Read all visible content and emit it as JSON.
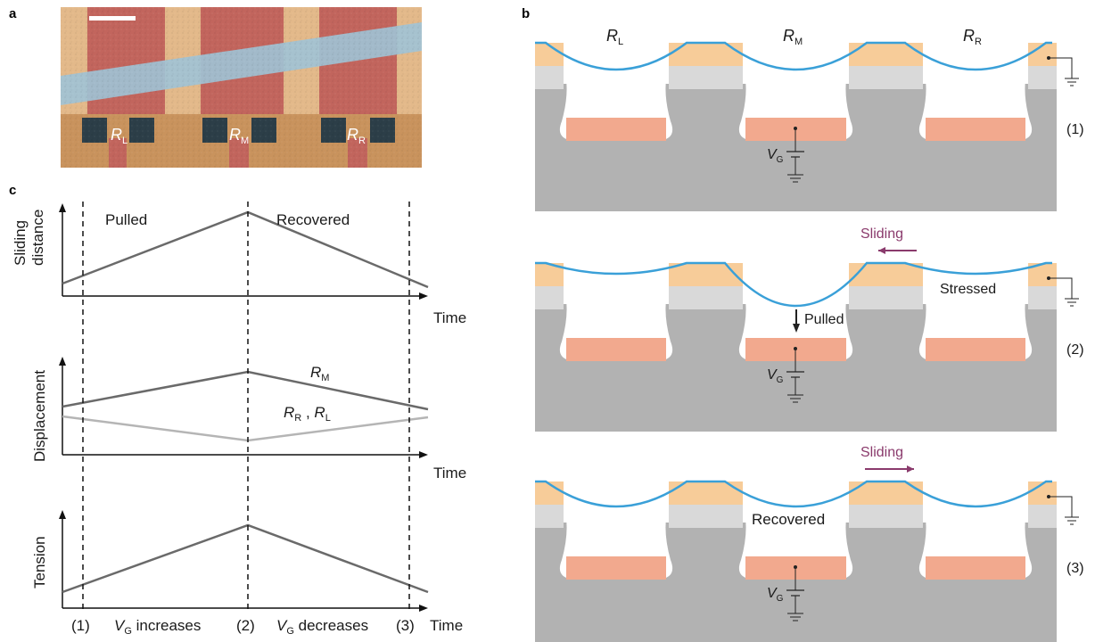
{
  "panels": {
    "a": "a",
    "b": "b",
    "c": "c"
  },
  "colors": {
    "membrane": "#3aa0d8",
    "gold": "#f7cc99",
    "light_gray": "#d9d9d9",
    "gray": "#b2b2b2",
    "gate": "#f2a98e",
    "sliding": "#8a3a6c",
    "curve_dark": "#6a6a6a",
    "curve_light": "#b5b5b5"
  },
  "micrograph": {
    "resonators": [
      {
        "symbol": "R",
        "sub": "L"
      },
      {
        "symbol": "R",
        "sub": "M"
      },
      {
        "symbol": "R",
        "sub": "R"
      }
    ]
  },
  "schematic": {
    "resonators": [
      {
        "symbol": "R",
        "sub": "L"
      },
      {
        "symbol": "R",
        "sub": "M"
      },
      {
        "symbol": "R",
        "sub": "R"
      }
    ],
    "gate": {
      "symbol": "V",
      "sub": "G"
    },
    "states": [
      {
        "index": "(1)"
      },
      {
        "index": "(2)",
        "sliding": "Sliding",
        "stressed": "Stressed",
        "pulled": "Pulled"
      },
      {
        "index": "(3)",
        "sliding": "Sliding",
        "recovered": "Recovered"
      }
    ]
  },
  "timeline": {
    "plots": [
      {
        "ylabel_line1": "Sliding",
        "ylabel_line2": "distance",
        "xlabel": "Time",
        "left_label": "Pulled",
        "right_label": "Recovered"
      },
      {
        "ylabel": "Displacement",
        "xlabel": "Time",
        "series_upper": {
          "symbol": "R",
          "sub": "M"
        },
        "series_lower": {
          "symbol1": "R",
          "sub1": "R",
          "sep": ",",
          "symbol2": "R",
          "sub2": "L"
        }
      },
      {
        "ylabel": "Tension",
        "xlabel": "Time"
      }
    ],
    "markers": [
      "(1)",
      "(2)",
      "(3)"
    ],
    "phase1": {
      "symbol": "V",
      "sub": "G",
      "text": "increases"
    },
    "phase2": {
      "symbol": "V",
      "sub": "G",
      "text": "decreases"
    },
    "axis_end": "Time"
  }
}
